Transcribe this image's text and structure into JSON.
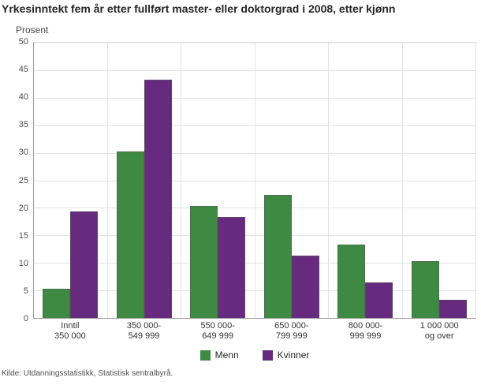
{
  "title": "Yrkesinntekt fem år etter fullført master- eller doktorgrad i 2008, etter kjønn",
  "y_axis_label": "Prosent",
  "source": "Kilde: Utdanningsstatistikk, Statistisk sentralbyrå.",
  "colors": {
    "menn": "#3f8a42",
    "kvinner": "#662a7f",
    "gridline": "#e3e3e3",
    "axis": "#9b9b9b"
  },
  "chart_data": {
    "type": "bar",
    "title": "Yrkesinntekt fem år etter fullført master- eller doktorgrad i 2008, etter kjønn",
    "xlabel": "",
    "ylabel": "Prosent",
    "ylim": [
      0,
      50
    ],
    "ytick_step": 5,
    "grid": true,
    "legend_position": "bottom",
    "categories": [
      [
        "Inntil",
        "350 000"
      ],
      [
        "350 000-",
        "549 999"
      ],
      [
        "550 000-",
        "649 999"
      ],
      [
        "650 000-",
        "799 999"
      ],
      [
        "800 000-",
        "999 999"
      ],
      [
        "1 000 000",
        "og over"
      ]
    ],
    "series": [
      {
        "name": "Menn",
        "color": "#3f8a42",
        "values": [
          5.3,
          30.3,
          20.3,
          22.3,
          13.3,
          10.3
        ]
      },
      {
        "name": "Kvinner",
        "color": "#662a7f",
        "values": [
          19.3,
          43.3,
          18.3,
          11.3,
          6.4,
          3.3
        ]
      }
    ]
  }
}
